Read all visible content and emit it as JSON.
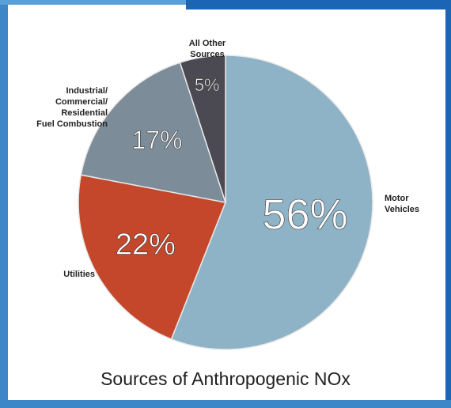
{
  "chart_data": {
    "type": "pie",
    "title": "Sources of Anthropogenic NOx",
    "categories": [
      "Motor\nVehicles",
      "Utilities",
      "Industrial/\nCommercial/\nResidential\nFuel Combustion",
      "All Other\nSources"
    ],
    "values": [
      56,
      22,
      17,
      5
    ],
    "value_labels": [
      "56%",
      "22%",
      "17%",
      "5%"
    ],
    "colors": [
      "#8fb3c6",
      "#c4472b",
      "#7d8c99",
      "#4b4a52"
    ]
  }
}
